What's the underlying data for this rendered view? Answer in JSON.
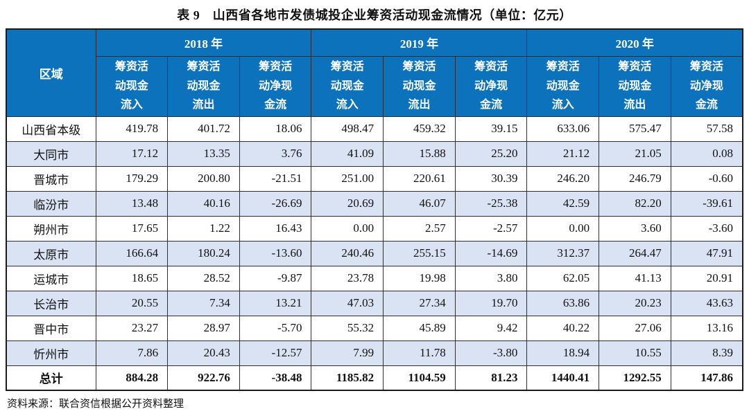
{
  "title": "表 9　山西省各地市发债城投企业筹资活动现金流情况（单位：亿元）",
  "source_note": "资料来源：联合资信根据公开资料整理",
  "colors": {
    "header_bg": "#0d72bc",
    "alt_row_bg": "#dae3f3",
    "header_text": "#ffffff"
  },
  "table": {
    "region_header": "区域",
    "year_groups": [
      {
        "label": "2018 年",
        "columns": [
          "筹资活\n动现金\n流入",
          "筹资活\n动现金\n流出",
          "筹资活\n动净现\n金流"
        ]
      },
      {
        "label": "2019 年",
        "columns": [
          "筹资活\n动现金\n流入",
          "筹资活\n动现金\n流出",
          "筹资活\n动净现\n金流"
        ]
      },
      {
        "label": "2020 年",
        "columns": [
          "筹资活\n动现金\n流入",
          "筹资活\n动现金\n流出",
          "筹资活\n动净现\n金流"
        ]
      }
    ],
    "rows": [
      {
        "region": "山西省本级",
        "values": [
          "419.78",
          "401.72",
          "18.06",
          "498.47",
          "459.32",
          "39.15",
          "633.06",
          "575.47",
          "57.58"
        ]
      },
      {
        "region": "大同市",
        "values": [
          "17.12",
          "13.35",
          "3.76",
          "41.09",
          "15.88",
          "25.20",
          "21.12",
          "21.05",
          "0.08"
        ]
      },
      {
        "region": "晋城市",
        "values": [
          "179.29",
          "200.80",
          "-21.51",
          "251.00",
          "220.61",
          "30.39",
          "246.20",
          "246.79",
          "-0.60"
        ]
      },
      {
        "region": "临汾市",
        "values": [
          "13.48",
          "40.16",
          "-26.69",
          "20.69",
          "46.07",
          "-25.38",
          "42.59",
          "82.20",
          "-39.61"
        ]
      },
      {
        "region": "朔州市",
        "values": [
          "17.65",
          "1.22",
          "16.43",
          "0.00",
          "2.57",
          "-2.57",
          "0.00",
          "3.60",
          "-3.60"
        ]
      },
      {
        "region": "太原市",
        "values": [
          "166.64",
          "180.24",
          "-13.60",
          "240.46",
          "255.15",
          "-14.69",
          "312.37",
          "264.47",
          "47.91"
        ]
      },
      {
        "region": "运城市",
        "values": [
          "18.65",
          "28.52",
          "-9.87",
          "23.78",
          "19.98",
          "3.80",
          "62.05",
          "41.13",
          "20.91"
        ]
      },
      {
        "region": "长治市",
        "values": [
          "20.55",
          "7.34",
          "13.21",
          "47.03",
          "27.34",
          "19.70",
          "63.86",
          "20.23",
          "43.63"
        ]
      },
      {
        "region": "晋中市",
        "values": [
          "23.27",
          "28.97",
          "-5.70",
          "55.32",
          "45.89",
          "9.42",
          "40.22",
          "27.06",
          "13.16"
        ]
      },
      {
        "region": "忻州市",
        "values": [
          "7.86",
          "20.43",
          "-12.57",
          "7.99",
          "11.78",
          "-3.80",
          "18.94",
          "10.55",
          "8.39"
        ]
      }
    ],
    "total_row": {
      "region": "总计",
      "values": [
        "884.28",
        "922.76",
        "-38.48",
        "1185.82",
        "1104.59",
        "81.23",
        "1440.41",
        "1292.55",
        "147.86"
      ]
    }
  }
}
